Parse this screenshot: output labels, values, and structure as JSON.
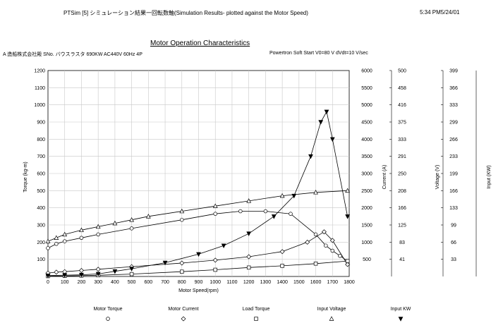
{
  "header": {
    "app_title": "PTSim [5] シミュレーション結果一回転数軸(Simulation Results- plotted against the Motor Speed)",
    "timestamp": "5:34 PM5/24/01"
  },
  "chart_data": {
    "type": "line",
    "title": "Motor Operation Characteristics",
    "info_left": "A 造船株式会社殿  SNo. バウスラスタ 690KW  AC440V  60Hz 4P",
    "info_right": "Powertron Soft Start V0=80 V  dVdt=10 V/sec",
    "xlabel": "Motor Speed(rpm)",
    "xlim": [
      0,
      1800
    ],
    "x_ticks": [
      0,
      100,
      200,
      300,
      400,
      500,
      600,
      700,
      800,
      900,
      1000,
      1100,
      1200,
      1300,
      1400,
      1500,
      1600,
      1700,
      1800
    ],
    "axes": [
      {
        "label": "Torque (kg-m)",
        "min": 0,
        "max": 1200,
        "ticks": [
          "100",
          "200",
          "300",
          "400",
          "500",
          "600",
          "700",
          "800",
          "900",
          "1000",
          "1100",
          "1200"
        ]
      },
      {
        "label": "",
        "min": 0,
        "max": 6000,
        "ticks": [
          "500",
          "1000",
          "1500",
          "2000",
          "2500",
          "3000",
          "3500",
          "4000",
          "4500",
          "5000",
          "5500",
          "6000"
        ]
      },
      {
        "label": "Current (A)",
        "min": 0,
        "max": 500,
        "ticks": [
          "41",
          "83",
          "125",
          "166",
          "208",
          "250",
          "291",
          "333",
          "375",
          "416",
          "458",
          "500"
        ]
      },
      {
        "label": "Voltage (V)",
        "min": 0,
        "max": 399,
        "ticks": [
          "33",
          "66",
          "99",
          "133",
          "166",
          "199",
          "233",
          "266",
          "299",
          "333",
          "366",
          "399"
        ]
      },
      {
        "label": "Input (KW)",
        "min": 0,
        "max": 400,
        "ticks": []
      }
    ],
    "grid": true,
    "legend_position": "bottom",
    "series": [
      {
        "name": "Motor Torque",
        "marker": "circle",
        "x": [
          0,
          50,
          100,
          200,
          300,
          500,
          800,
          1000,
          1150,
          1300,
          1450,
          1600,
          1660,
          1700,
          1745,
          1790
        ],
        "y": [
          165,
          190,
          205,
          225,
          245,
          280,
          330,
          365,
          380,
          380,
          365,
          245,
          180,
          150,
          120,
          90
        ]
      },
      {
        "name": "Motor Current",
        "marker": "diamond",
        "x": [
          0,
          50,
          100,
          200,
          300,
          500,
          800,
          1000,
          1200,
          1400,
          1550,
          1650,
          1700,
          1790
        ],
        "y": [
          20,
          25,
          28,
          35,
          42,
          57,
          78,
          95,
          115,
          145,
          200,
          260,
          210,
          70
        ]
      },
      {
        "name": "Load Torque",
        "marker": "square",
        "x": [
          0,
          100,
          200,
          300,
          500,
          800,
          1000,
          1200,
          1400,
          1600,
          1790
        ],
        "y": [
          2,
          3,
          5,
          7,
          14,
          28,
          39,
          52,
          62,
          75,
          90
        ]
      },
      {
        "name": "Input Voltage",
        "marker": "triangle-up",
        "x": [
          0,
          50,
          100,
          200,
          300,
          400,
          500,
          600,
          800,
          1000,
          1200,
          1400,
          1600,
          1790
        ],
        "y": [
          205,
          225,
          245,
          270,
          290,
          310,
          330,
          350,
          380,
          410,
          440,
          470,
          490,
          500
        ]
      },
      {
        "name": "Input KW",
        "marker": "triangle-down",
        "x": [
          0,
          100,
          200,
          300,
          400,
          500,
          700,
          900,
          1050,
          1200,
          1350,
          1470,
          1570,
          1630,
          1665,
          1700,
          1790
        ],
        "y": [
          5,
          8,
          10,
          15,
          30,
          45,
          80,
          130,
          180,
          250,
          350,
          470,
          700,
          900,
          960,
          800,
          350
        ]
      }
    ]
  }
}
